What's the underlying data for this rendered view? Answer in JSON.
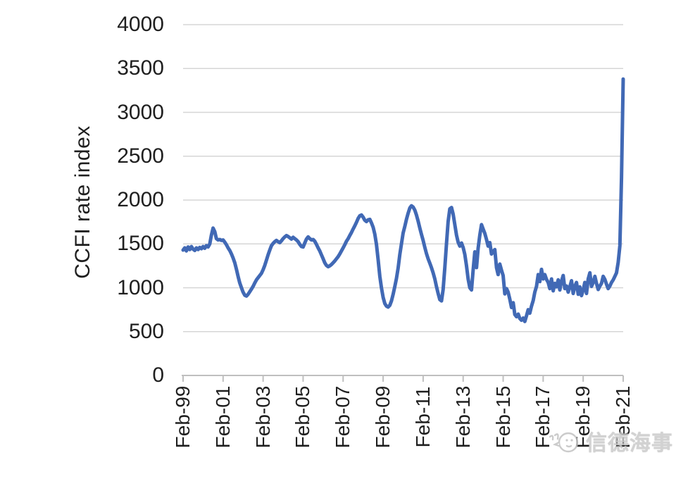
{
  "chart_data": {
    "type": "line",
    "title": "",
    "ylabel": "CCFI rate index",
    "xlabel": "",
    "ylim": [
      0,
      4000
    ],
    "yticks": [
      0,
      500,
      1000,
      1500,
      2000,
      2500,
      3000,
      3500,
      4000
    ],
    "x_tick_labels": [
      "Feb-99",
      "Feb-01",
      "Feb-03",
      "Feb-05",
      "Feb-07",
      "Feb-09",
      "Feb-11",
      "Feb-13",
      "Feb-15",
      "Feb-17",
      "Feb-19",
      "Feb-21"
    ],
    "x_start_label": "Feb-99",
    "x_end_label": "Feb-21",
    "x_interval": "monthly",
    "grid": "horizontal",
    "legend_position": "none",
    "line_color": "#4169b5",
    "gridline_color": "#d6d6d6",
    "axis_color": "#bfbfbf",
    "text_color": "#1f1f1f",
    "series": [
      {
        "name": "CCFI rate index",
        "values": [
          1430,
          1455,
          1420,
          1465,
          1435,
          1470,
          1440,
          1425,
          1455,
          1435,
          1460,
          1445,
          1470,
          1450,
          1480,
          1465,
          1500,
          1600,
          1680,
          1640,
          1560,
          1545,
          1550,
          1540,
          1545,
          1520,
          1490,
          1455,
          1425,
          1385,
          1340,
          1285,
          1210,
          1130,
          1055,
          1000,
          950,
          915,
          905,
          925,
          955,
          985,
          1015,
          1055,
          1090,
          1115,
          1140,
          1165,
          1205,
          1255,
          1315,
          1375,
          1430,
          1480,
          1505,
          1525,
          1540,
          1525,
          1515,
          1535,
          1560,
          1580,
          1595,
          1585,
          1570,
          1555,
          1575,
          1560,
          1545,
          1525,
          1495,
          1470,
          1465,
          1510,
          1555,
          1580,
          1560,
          1545,
          1550,
          1530,
          1495,
          1455,
          1420,
          1375,
          1330,
          1285,
          1255,
          1240,
          1250,
          1265,
          1285,
          1305,
          1330,
          1355,
          1385,
          1420,
          1455,
          1490,
          1530,
          1560,
          1595,
          1630,
          1670,
          1705,
          1745,
          1790,
          1820,
          1830,
          1805,
          1770,
          1755,
          1775,
          1780,
          1740,
          1690,
          1610,
          1495,
          1320,
          1130,
          1000,
          890,
          820,
          790,
          780,
          800,
          850,
          925,
          1015,
          1105,
          1225,
          1380,
          1500,
          1625,
          1700,
          1780,
          1850,
          1910,
          1935,
          1920,
          1885,
          1830,
          1760,
          1680,
          1610,
          1540,
          1460,
          1390,
          1330,
          1280,
          1230,
          1170,
          1100,
          1015,
          935,
          865,
          850,
          980,
          1230,
          1505,
          1755,
          1900,
          1915,
          1840,
          1720,
          1600,
          1520,
          1475,
          1510,
          1460,
          1380,
          1250,
          1100,
          1000,
          975,
          1200,
          1410,
          1230,
          1450,
          1600,
          1720,
          1670,
          1620,
          1550,
          1475,
          1515,
          1385,
          1410,
          1435,
          1230,
          1150,
          1270,
          1200,
          1140,
          930,
          990,
          950,
          870,
          775,
          830,
          695,
          670,
          700,
          650,
          630,
          655,
          615,
          680,
          750,
          710,
          790,
          855,
          950,
          1015,
          1150,
          1070,
          1210,
          1100,
          1150,
          1095,
          1060,
          990,
          1100,
          965,
          1050,
          1010,
          1090,
          975,
          1075,
          1140,
          990,
          1020,
          950,
          1010,
          1080,
          935,
          1015,
          1060,
          925,
          1010,
          910,
          975,
          1060,
          935,
          1100,
          1170,
          1015,
          1060,
          1130,
          1050,
          980,
          1020,
          1050,
          1130,
          1095,
          1040,
          990,
          1020,
          1060,
          1090,
          1130,
          1170,
          1290,
          1480,
          2250,
          3380
        ]
      }
    ]
  },
  "watermark": {
    "text": "信德海事",
    "icon": "chick-logo"
  }
}
